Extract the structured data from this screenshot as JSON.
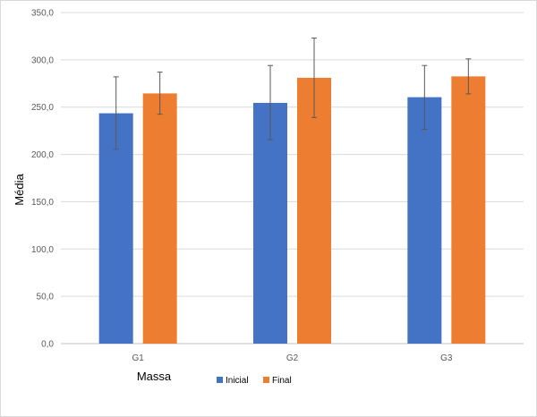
{
  "chart_data": {
    "type": "bar",
    "xlabel": "Massa",
    "ylabel": "Média",
    "ylim": [
      0,
      350
    ],
    "yticks": [
      0,
      50,
      100,
      150,
      200,
      250,
      300,
      350
    ],
    "ytick_labels": [
      "0,0",
      "50,0",
      "100,0",
      "150,0",
      "200,0",
      "250,0",
      "300,0",
      "350,0"
    ],
    "categories": [
      "G1",
      "G2",
      "G3"
    ],
    "grid": true,
    "legend_position": "bottom",
    "series": [
      {
        "name": "Inicial",
        "color": "#4472C4",
        "values": [
          243.5,
          254.5,
          260.5
        ],
        "error_low": [
          205.5,
          215.5,
          226.5
        ],
        "error_high": [
          282,
          294,
          294
        ]
      },
      {
        "name": "Final",
        "color": "#ED7D31",
        "values": [
          264.5,
          281,
          282.5
        ],
        "error_low": [
          242.5,
          239,
          264
        ],
        "error_high": [
          287,
          323,
          301
        ]
      }
    ]
  }
}
